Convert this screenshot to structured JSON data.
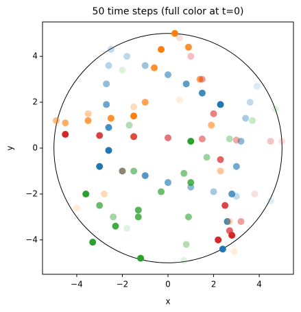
{
  "chart_data": {
    "type": "scatter",
    "title": "50 time steps (full color at t=0)",
    "x_label": "x",
    "y_label": "y",
    "xlim": [
      -5.5,
      5.5
    ],
    "ylim": [
      -5.5,
      5.5
    ],
    "xticks": [
      {
        "value": -4,
        "label": "−4"
      },
      {
        "value": -2,
        "label": "−2"
      },
      0,
      2,
      4
    ],
    "yticks": [
      {
        "value": -4,
        "label": "−4"
      },
      {
        "value": -2,
        "label": "−2"
      },
      0,
      2,
      4
    ],
    "circle_radius": 5,
    "series": [
      {
        "color": "#1f77b4",
        "x": [
          2.4,
          2.6,
          2.8,
          3.0,
          3.2,
          3.4,
          3.6,
          3.9
        ],
        "y": [
          -4.4,
          -3.2,
          -2.0,
          -0.8,
          0.3,
          1.3,
          2.0,
          2.7
        ]
      },
      {
        "color": "#1f77b4",
        "x": [
          -3.0,
          -2.0,
          -1.0,
          0.0,
          1.0,
          2.0,
          3.0,
          4.5
        ],
        "y": [
          -0.8,
          -1.0,
          -1.2,
          -1.5,
          -1.7,
          -1.9,
          -2.1,
          -2.3
        ]
      },
      {
        "color": "#1f77b4",
        "x": [
          2.3,
          1.5,
          0.8,
          0.0,
          -1.0,
          -1.8,
          -2.5
        ],
        "y": [
          1.9,
          2.4,
          2.8,
          3.2,
          3.6,
          4.0,
          4.3
        ]
      },
      {
        "color": "#1f77b4",
        "x": [
          -2.6,
          -2.6,
          -2.7,
          -2.7,
          -2.6,
          -2.5
        ],
        "y": [
          -0.1,
          0.9,
          1.9,
          2.8,
          3.6,
          4.3
        ]
      },
      {
        "color": "#ff7f0e",
        "x": [
          -1.5,
          -2.5,
          -3.5,
          -4.5,
          -4.9,
          -3.5,
          -1.5,
          0.5
        ],
        "y": [
          1.4,
          1.3,
          1.2,
          1.1,
          1.2,
          1.5,
          1.8,
          2.1
        ]
      },
      {
        "color": "#ff7f0e",
        "x": [
          0.3,
          0.9,
          1.4,
          1.9,
          2.3,
          2.7,
          2.9
        ],
        "y": [
          5.0,
          4.4,
          3.0,
          1.0,
          -1.0,
          -3.2,
          -4.5
        ]
      },
      {
        "color": "#ff7f0e",
        "x": [
          -0.3,
          -0.6,
          -1.0,
          -1.5,
          -2.0,
          -2.8,
          -4.0
        ],
        "y": [
          4.3,
          3.5,
          2.0,
          0.5,
          -1.0,
          -2.0,
          -2.6
        ]
      },
      {
        "color": "#2ca02c",
        "x": [
          -3.3,
          -2.3,
          -1.3,
          -0.3,
          0.7,
          1.7,
          2.7,
          3.7,
          4.7
        ],
        "y": [
          -4.1,
          -3.4,
          -2.7,
          -1.9,
          -1.1,
          -0.4,
          0.4,
          1.2,
          1.7
        ]
      },
      {
        "color": "#2ca02c",
        "x": [
          -1.2,
          -1.3,
          -1.5,
          -1.7,
          -2.0
        ],
        "y": [
          -4.8,
          -3.0,
          -1.0,
          1.0,
          3.4
        ]
      },
      {
        "color": "#2ca02c",
        "x": [
          1.0,
          1.0,
          0.9,
          0.8,
          0.7
        ],
        "y": [
          0.3,
          -1.5,
          -3.0,
          -4.2,
          -4.9
        ]
      },
      {
        "color": "#2ca02c",
        "x": [
          -3.6,
          -3.0,
          -2.4,
          -1.8
        ],
        "y": [
          -2.0,
          -2.5,
          -3.0,
          -3.5
        ]
      },
      {
        "color": "#d62728",
        "x": [
          -4.5,
          -3.0,
          -1.5,
          0,
          1.5,
          3.0,
          4.5,
          5.0
        ],
        "y": [
          0.6,
          0.55,
          0.5,
          0.45,
          0.4,
          0.35,
          0.3,
          0.3
        ]
      },
      {
        "color": "#d62728",
        "x": [
          2.8,
          2.5,
          2.3,
          2.0,
          1.5,
          1.0,
          0.5
        ],
        "y": [
          -3.8,
          -2.5,
          -0.5,
          1.5,
          3.0,
          4.0,
          4.8
        ]
      },
      {
        "color": "#d62728",
        "x": [
          2.2,
          2.7,
          3.2,
          3.8
        ],
        "y": [
          -4.0,
          -3.6,
          -3.2,
          -2.0
        ]
      }
    ]
  }
}
